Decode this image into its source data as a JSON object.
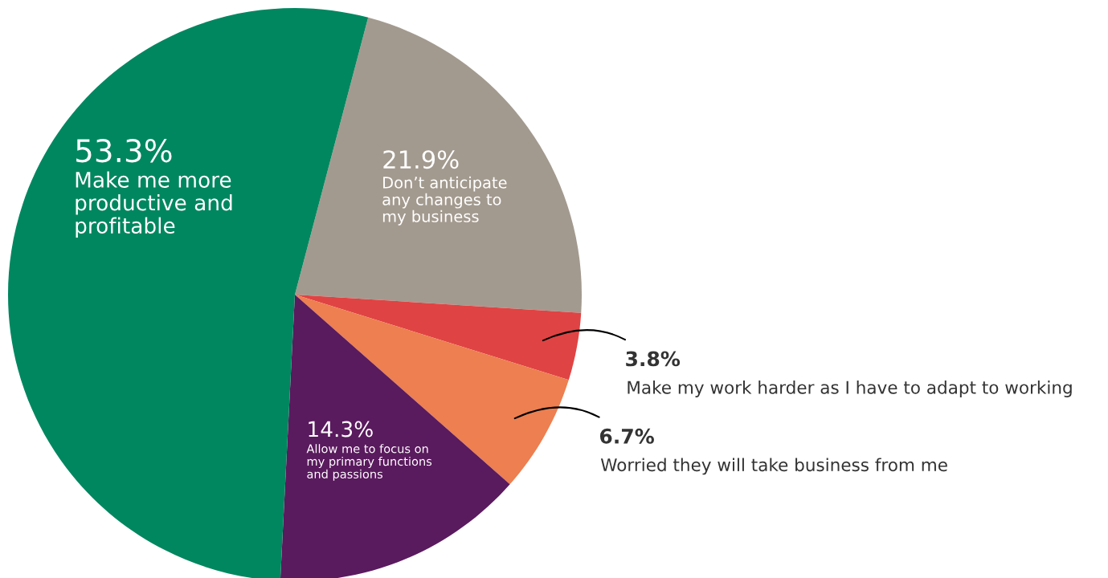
{
  "chart_data": {
    "type": "pie",
    "categories": [
      "Don’t anticipate any changes to my business",
      "Make my work harder as I have to adapt to working",
      "Worried they will take business from me",
      "Allow me to focus on my primary functions and passions",
      "Make me more productive and profitable"
    ],
    "values": [
      21.9,
      3.8,
      6.7,
      14.3,
      53.3
    ],
    "colors": [
      "#a39a8f",
      "#e04343",
      "#ed7f50",
      "#5a1a5e",
      "#00875f"
    ],
    "value_labels": [
      "21.9%",
      "3.8%",
      "6.7%",
      "14.3%",
      "53.3%"
    ]
  }
}
